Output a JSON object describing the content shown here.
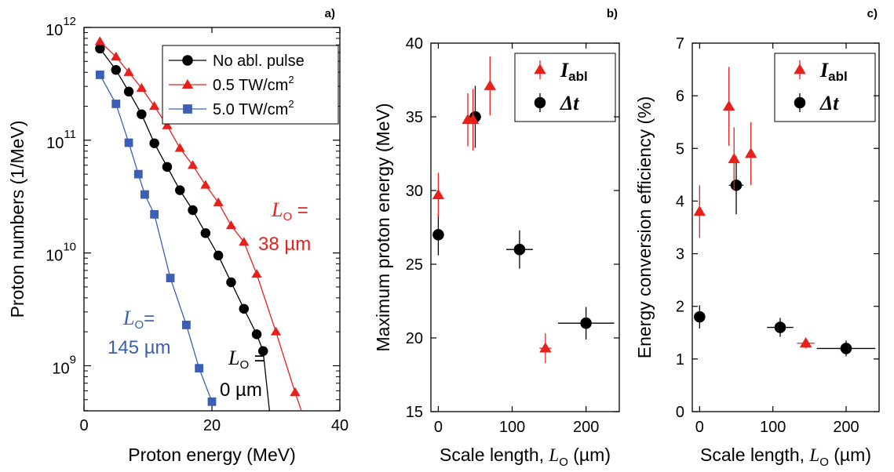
{
  "chart_data": [
    {
      "panel_label": "a)",
      "type": "line",
      "xlabel": "Proton energy (MeV)",
      "ylabel": "Proton numbers (1/MeV)",
      "xlim": [
        0,
        40
      ],
      "ylim_log10": [
        8.6,
        12
      ],
      "yscale": "log",
      "xticks": [
        "0",
        "20",
        "40"
      ],
      "yticks": [
        {
          "base": "10",
          "exp": "9",
          "v": 9
        },
        {
          "base": "10",
          "exp": "10",
          "v": 10
        },
        {
          "base": "10",
          "exp": "11",
          "v": 11
        },
        {
          "base": "10",
          "exp": "12",
          "v": 12
        }
      ],
      "series": [
        {
          "name": "No abl. pulse",
          "color": "#000000",
          "marker": "circle",
          "x": [
            2.5,
            5,
            7,
            9,
            11,
            13,
            15,
            17,
            19,
            21,
            23,
            25,
            27,
            28
          ],
          "y": [
            650000000000.0,
            420000000000.0,
            270000000000.0,
            170000000000.0,
            94000000000.0,
            58000000000.0,
            36000000000.0,
            24000000000.0,
            15000000000.0,
            9500000000.0,
            5500000000.0,
            3200000000.0,
            1900000000.0,
            1350000000.0
          ],
          "tail": [
            [
              28,
              1350000000.0
            ],
            [
              29,
              250000000.0
            ]
          ]
        },
        {
          "name": "0.5 TW/cm2",
          "legend_base": "0.5 TW/cm",
          "legend_sup": "2",
          "color": "#e8201c",
          "marker": "triangle",
          "x": [
            2.5,
            5,
            7,
            9,
            11,
            13,
            15,
            17,
            19,
            21,
            23,
            25,
            27,
            30,
            33
          ],
          "y": [
            750000000000.0,
            550000000000.0,
            400000000000.0,
            290000000000.0,
            200000000000.0,
            135000000000.0,
            85000000000.0,
            60000000000.0,
            40000000000.0,
            28000000000.0,
            17500000000.0,
            12500000000.0,
            6500000000.0,
            2000000000.0,
            580000000.0
          ],
          "tail": [
            [
              33,
              580000000.0
            ],
            [
              34,
              250000000.0
            ]
          ]
        },
        {
          "name": "5.0 TW/cm2",
          "legend_base": "5.0 TW/cm",
          "legend_sup": "2",
          "color": "#3a5fb4",
          "marker": "square",
          "x": [
            2.5,
            5,
            7,
            8.5,
            9.5,
            11,
            13.5,
            16,
            18,
            20
          ],
          "y": [
            380000000000.0,
            210000000000.0,
            95000000000.0,
            50000000000.0,
            33000000000.0,
            22000000000.0,
            6000000000.0,
            2300000000.0,
            950000000.0,
            480000000.0
          ],
          "tail": []
        }
      ],
      "annotations": [
        {
          "text_italic": "L",
          "sub": "O",
          "rest": " =",
          "line2": "38 µm",
          "color": "#e8201c"
        },
        {
          "text_italic": "L",
          "sub": "O",
          "rest": "=",
          "line2": "145 µm",
          "color": "#3a5fb4"
        },
        {
          "text_italic": "L",
          "sub": "O",
          "rest": " =",
          "line2": "0 µm",
          "color": "#000000"
        }
      ]
    },
    {
      "panel_label": "b)",
      "type": "scatter",
      "xlabel": "Scale length,",
      "xlabel_italic": "L",
      "xlabel_sub": "O",
      "xlabel_unit": " (µm)",
      "ylabel": "Maximum proton energy (MeV)",
      "xlim": [
        -10,
        245
      ],
      "ylim": [
        15,
        40
      ],
      "xticks": [
        "0",
        "100",
        "200"
      ],
      "yticks": [
        "15",
        "20",
        "25",
        "30",
        "35",
        "40"
      ],
      "series": [
        {
          "name_italic": "I",
          "name_sub": "abl",
          "color": "#e8201c",
          "marker": "triangle",
          "points": [
            {
              "x": 0,
              "y": 29.7,
              "yerr": 1.5,
              "xerr": 0
            },
            {
              "x": 40,
              "y": 34.8,
              "yerr": 1.8,
              "xerr": 5
            },
            {
              "x": 47,
              "y": 34.8,
              "yerr": 2.1,
              "xerr": 0
            },
            {
              "x": 70,
              "y": 37.1,
              "yerr": 2.0,
              "xerr": 0
            },
            {
              "x": 145,
              "y": 19.3,
              "yerr": 1.0,
              "xerr": 8
            }
          ]
        },
        {
          "name": "Δt",
          "color": "#000000",
          "marker": "circle",
          "points": [
            {
              "x": 0,
              "y": 27.0,
              "yerr": 1.4,
              "xerr": 0
            },
            {
              "x": 50,
              "y": 35.0,
              "yerr": 2.1,
              "xerr": 8
            },
            {
              "x": 110,
              "y": 26.0,
              "yerr": 1.3,
              "xerr": 18
            },
            {
              "x": 200,
              "y": 21.0,
              "yerr": 1.1,
              "xerr": 38
            }
          ]
        }
      ]
    },
    {
      "panel_label": "c)",
      "type": "scatter",
      "xlabel": "Scale length,",
      "xlabel_italic": "L",
      "xlabel_sub": "O",
      "xlabel_unit": " (µm)",
      "ylabel": "Energy conversion efficiency (%)",
      "xlim": [
        -10,
        245
      ],
      "ylim": [
        0,
        7
      ],
      "xticks": [
        "0",
        "100",
        "200"
      ],
      "yticks": [
        "0",
        "1",
        "2",
        "3",
        "4",
        "5",
        "6",
        "7"
      ],
      "series": [
        {
          "name_italic": "I",
          "name_sub": "abl",
          "color": "#e8201c",
          "marker": "triangle",
          "points": [
            {
              "x": 0,
              "y": 3.8,
              "yerr": 0.5,
              "xerr": 0
            },
            {
              "x": 40,
              "y": 5.8,
              "yerr": 0.75,
              "xerr": 0
            },
            {
              "x": 47,
              "y": 4.8,
              "yerr": 0.6,
              "xerr": 0
            },
            {
              "x": 70,
              "y": 4.9,
              "yerr": 0.6,
              "xerr": 0
            },
            {
              "x": 145,
              "y": 1.3,
              "yerr": 0.1,
              "xerr": 12
            }
          ]
        },
        {
          "name": "Δt",
          "color": "#000000",
          "marker": "circle",
          "points": [
            {
              "x": 0,
              "y": 1.8,
              "yerr": 0.22,
              "xerr": 0
            },
            {
              "x": 50,
              "y": 4.3,
              "yerr": 0.55,
              "xerr": 10
            },
            {
              "x": 110,
              "y": 1.6,
              "yerr": 0.18,
              "xerr": 18
            },
            {
              "x": 200,
              "y": 1.2,
              "yerr": 0.15,
              "xerr": 40
            }
          ]
        }
      ]
    }
  ]
}
